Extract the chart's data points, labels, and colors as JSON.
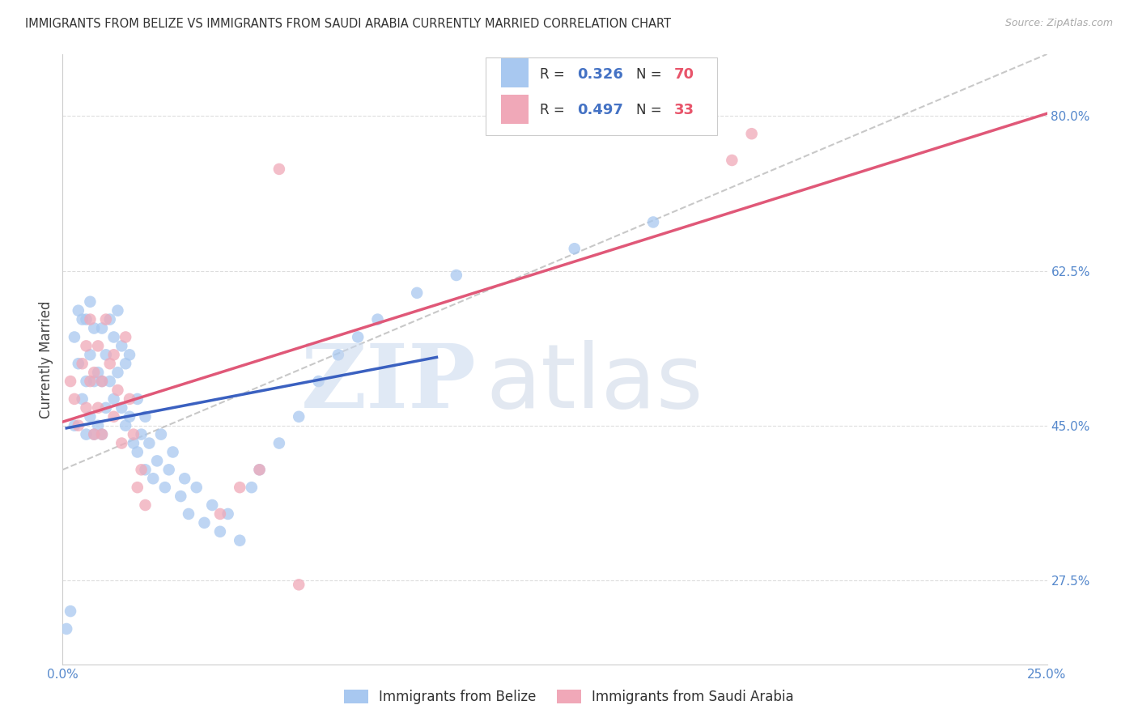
{
  "title": "IMMIGRANTS FROM BELIZE VS IMMIGRANTS FROM SAUDI ARABIA CURRENTLY MARRIED CORRELATION CHART",
  "source": "Source: ZipAtlas.com",
  "ylabel": "Currently Married",
  "x_min": 0.0,
  "x_max": 0.25,
  "y_min": 0.18,
  "y_max": 0.87,
  "y_ticks": [
    0.275,
    0.45,
    0.625,
    0.8
  ],
  "y_tick_labels": [
    "27.5%",
    "45.0%",
    "62.5%",
    "80.0%"
  ],
  "x_ticks": [
    0.0,
    0.05,
    0.1,
    0.15,
    0.2,
    0.25
  ],
  "x_tick_labels": [
    "0.0%",
    "",
    "",
    "",
    "",
    "25.0%"
  ],
  "color_belize": "#A8C8F0",
  "color_saudi": "#F0A8B8",
  "color_belize_line": "#3A60C0",
  "color_saudi_line": "#E05878",
  "color_dashed": "#BBBBBB",
  "background_color": "#FFFFFF",
  "grid_color": "#DDDDDD",
  "belize_x": [
    0.001,
    0.002,
    0.003,
    0.003,
    0.004,
    0.004,
    0.005,
    0.005,
    0.006,
    0.006,
    0.006,
    0.007,
    0.007,
    0.007,
    0.008,
    0.008,
    0.008,
    0.009,
    0.009,
    0.01,
    0.01,
    0.01,
    0.011,
    0.011,
    0.012,
    0.012,
    0.013,
    0.013,
    0.014,
    0.014,
    0.015,
    0.015,
    0.016,
    0.016,
    0.017,
    0.017,
    0.018,
    0.019,
    0.019,
    0.02,
    0.021,
    0.021,
    0.022,
    0.023,
    0.024,
    0.025,
    0.026,
    0.027,
    0.028,
    0.03,
    0.031,
    0.032,
    0.034,
    0.036,
    0.038,
    0.04,
    0.042,
    0.045,
    0.048,
    0.05,
    0.055,
    0.06,
    0.065,
    0.07,
    0.075,
    0.08,
    0.09,
    0.1,
    0.13,
    0.15
  ],
  "belize_y": [
    0.22,
    0.24,
    0.45,
    0.55,
    0.52,
    0.58,
    0.48,
    0.57,
    0.44,
    0.5,
    0.57,
    0.46,
    0.53,
    0.59,
    0.44,
    0.5,
    0.56,
    0.45,
    0.51,
    0.44,
    0.5,
    0.56,
    0.47,
    0.53,
    0.5,
    0.57,
    0.48,
    0.55,
    0.51,
    0.58,
    0.47,
    0.54,
    0.45,
    0.52,
    0.46,
    0.53,
    0.43,
    0.42,
    0.48,
    0.44,
    0.4,
    0.46,
    0.43,
    0.39,
    0.41,
    0.44,
    0.38,
    0.4,
    0.42,
    0.37,
    0.39,
    0.35,
    0.38,
    0.34,
    0.36,
    0.33,
    0.35,
    0.32,
    0.38,
    0.4,
    0.43,
    0.46,
    0.5,
    0.53,
    0.55,
    0.57,
    0.6,
    0.62,
    0.65,
    0.68
  ],
  "saudi_x": [
    0.002,
    0.003,
    0.004,
    0.005,
    0.006,
    0.006,
    0.007,
    0.007,
    0.008,
    0.008,
    0.009,
    0.009,
    0.01,
    0.01,
    0.011,
    0.012,
    0.013,
    0.013,
    0.014,
    0.015,
    0.016,
    0.017,
    0.018,
    0.019,
    0.02,
    0.021,
    0.04,
    0.045,
    0.05,
    0.055,
    0.06,
    0.17,
    0.175
  ],
  "saudi_y": [
    0.5,
    0.48,
    0.45,
    0.52,
    0.47,
    0.54,
    0.5,
    0.57,
    0.44,
    0.51,
    0.47,
    0.54,
    0.5,
    0.44,
    0.57,
    0.52,
    0.46,
    0.53,
    0.49,
    0.43,
    0.55,
    0.48,
    0.44,
    0.38,
    0.4,
    0.36,
    0.35,
    0.38,
    0.4,
    0.74,
    0.27,
    0.75,
    0.78
  ],
  "belize_line_x": [
    0.001,
    0.095
  ],
  "belize_line_y": [
    0.415,
    0.555
  ],
  "saudi_line_x": [
    0.0,
    0.25
  ],
  "saudi_line_y": [
    0.4,
    0.82
  ],
  "dashed_line_x": [
    0.0,
    0.25
  ],
  "dashed_line_y": [
    0.4,
    0.87
  ]
}
